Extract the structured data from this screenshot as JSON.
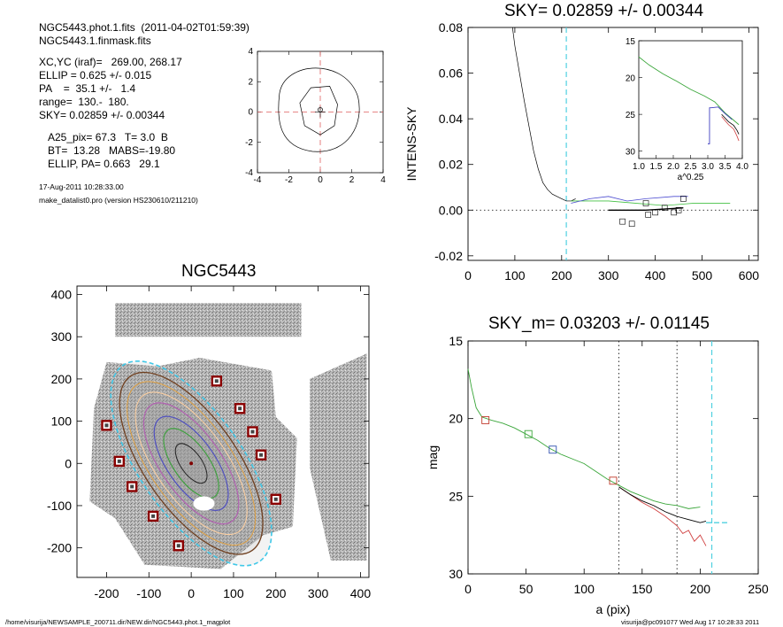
{
  "info": {
    "line1": "NGC5443.phot.1.fits  (2011-04-02T01:59:39)",
    "line2": "NGC5443.1.finmask.fits",
    "line3": "XC,YC (iraf)=   269.00, 268.17",
    "line4": "ELLIP = 0.625 +/- 0.015",
    "line5": "PA    =  35.1 +/-   1.4",
    "line6": "range=  130.-  180.",
    "line7": "SKY= 0.02859 +/- 0.00344",
    "line8": "A25_pix= 67.3   T= 3.0  B",
    "line9": "BT=  13.28   MABS=-19.80",
    "line10": "ELLIP, PA= 0.663   29.1",
    "date": "17-Aug-2011 10:28:33.00",
    "prog": "make_datalist0.pro (version HS230610/211210)"
  },
  "footer": {
    "left": "/home/visurija/NEWSAMPLE_200711.dir/NEW.dir/NGC5443.phot.1_magplot",
    "right": "visurija@pc091077  Wed Aug 17 10:28:33 2011"
  },
  "chart_data": [
    {
      "id": "contour",
      "type": "contour",
      "xticks": [
        "-4",
        "-2",
        "0",
        "2",
        "4"
      ],
      "yticks": [
        "-4",
        "-2",
        "0",
        "2",
        "4"
      ],
      "xlim": [
        -4,
        4
      ],
      "ylim": [
        -4,
        4
      ]
    },
    {
      "id": "sky",
      "type": "line",
      "title": "SKY= 0.02859 +/- 0.00344",
      "xlabel": "",
      "ylabel": "INTENS-SKY",
      "xlim": [
        0,
        620
      ],
      "ylim": [
        -0.022,
        0.08
      ],
      "xticks": [
        "0",
        "100",
        "200",
        "300",
        "400",
        "500",
        "600"
      ],
      "yticks": [
        "-0.02",
        "0.00",
        "0.02",
        "0.04",
        "0.06",
        "0.08"
      ],
      "vline_x": 210,
      "profile": [
        [
          95,
          0.08
        ],
        [
          100,
          0.072
        ],
        [
          110,
          0.06
        ],
        [
          120,
          0.048
        ],
        [
          130,
          0.037
        ],
        [
          140,
          0.026
        ],
        [
          150,
          0.018
        ],
        [
          160,
          0.012
        ],
        [
          170,
          0.009
        ],
        [
          180,
          0.007
        ],
        [
          190,
          0.006
        ],
        [
          200,
          0.005
        ],
        [
          210,
          0.004
        ],
        [
          220,
          0.004
        ],
        [
          230,
          0.005
        ]
      ],
      "boxes": [
        [
          330,
          -0.005
        ],
        [
          350,
          -0.006
        ],
        [
          380,
          0.003
        ],
        [
          385,
          -0.002
        ],
        [
          400,
          -0.001
        ],
        [
          420,
          0.001
        ],
        [
          440,
          -0.001
        ],
        [
          450,
          0.0
        ],
        [
          460,
          0.005
        ]
      ],
      "inset": {
        "xlabel": "a^0.25",
        "xticks": [
          "1.0",
          "1.5",
          "2.0",
          "2.5",
          "3.0",
          "3.5",
          "4.0"
        ],
        "yticks": [
          "15",
          "20",
          "25",
          "30"
        ],
        "xlim": [
          1.0,
          4.0
        ],
        "ylim": [
          15,
          31
        ]
      }
    },
    {
      "id": "image",
      "type": "image",
      "title": "NGC5443",
      "xlim": [
        -270,
        420
      ],
      "ylim": [
        -270,
        420
      ],
      "xticks": [
        "-200",
        "-100",
        "0",
        "100",
        "200",
        "300",
        "400"
      ],
      "yticks": [
        "-200",
        "-100",
        "0",
        "100",
        "200",
        "300",
        "400"
      ],
      "boxes": [
        [
          60,
          195
        ],
        [
          115,
          130
        ],
        [
          145,
          75
        ],
        [
          165,
          20
        ],
        [
          200,
          -85
        ],
        [
          -200,
          90
        ],
        [
          -170,
          5
        ],
        [
          -140,
          -55
        ],
        [
          -90,
          -125
        ],
        [
          -30,
          -195
        ]
      ]
    },
    {
      "id": "mag",
      "type": "line",
      "title": "SKY_m=  0.03203 +/- 0.01145",
      "xlabel": "a (pix)",
      "ylabel": "mag",
      "xlim": [
        0,
        250
      ],
      "ylim": [
        30,
        15
      ],
      "xticks": [
        "0",
        "50",
        "100",
        "150",
        "200",
        "250"
      ],
      "yticks": [
        "15",
        "20",
        "25",
        "30"
      ],
      "vlines": [
        130,
        180,
        210
      ],
      "green": [
        [
          0,
          16.8
        ],
        [
          3,
          18
        ],
        [
          7,
          19.3
        ],
        [
          12,
          19.9
        ],
        [
          20,
          20.1
        ],
        [
          30,
          20.3
        ],
        [
          40,
          20.6
        ],
        [
          50,
          21.0
        ],
        [
          60,
          21.4
        ],
        [
          70,
          21.9
        ],
        [
          80,
          22.3
        ],
        [
          90,
          22.6
        ],
        [
          100,
          22.9
        ],
        [
          110,
          23.4
        ],
        [
          120,
          23.9
        ],
        [
          130,
          24.3
        ],
        [
          140,
          24.7
        ],
        [
          150,
          25.0
        ],
        [
          160,
          25.3
        ],
        [
          170,
          25.5
        ],
        [
          180,
          25.6
        ],
        [
          190,
          25.8
        ],
        [
          200,
          25.7
        ]
      ],
      "black": [
        [
          130,
          24.4
        ],
        [
          140,
          24.9
        ],
        [
          150,
          25.3
        ],
        [
          160,
          25.6
        ],
        [
          170,
          26.0
        ],
        [
          180,
          26.3
        ],
        [
          190,
          26.5
        ],
        [
          200,
          26.7
        ],
        [
          205,
          26.6
        ]
      ],
      "red": [
        [
          130,
          24.4
        ],
        [
          140,
          24.9
        ],
        [
          150,
          25.4
        ],
        [
          160,
          25.8
        ],
        [
          170,
          26.3
        ],
        [
          180,
          26.9
        ],
        [
          185,
          27.4
        ],
        [
          190,
          27.2
        ],
        [
          195,
          27.9
        ],
        [
          200,
          27.5
        ],
        [
          205,
          28.2
        ]
      ],
      "blue_dash": [
        [
          205,
          26.7
        ],
        [
          225,
          26.7
        ]
      ],
      "boxes": [
        [
          15,
          20.1,
          "#c0392b"
        ],
        [
          52,
          21.0,
          "#3aa63a"
        ],
        [
          73,
          22.0,
          "#3050b0"
        ],
        [
          125,
          24.0,
          "#c0392b"
        ]
      ]
    }
  ]
}
